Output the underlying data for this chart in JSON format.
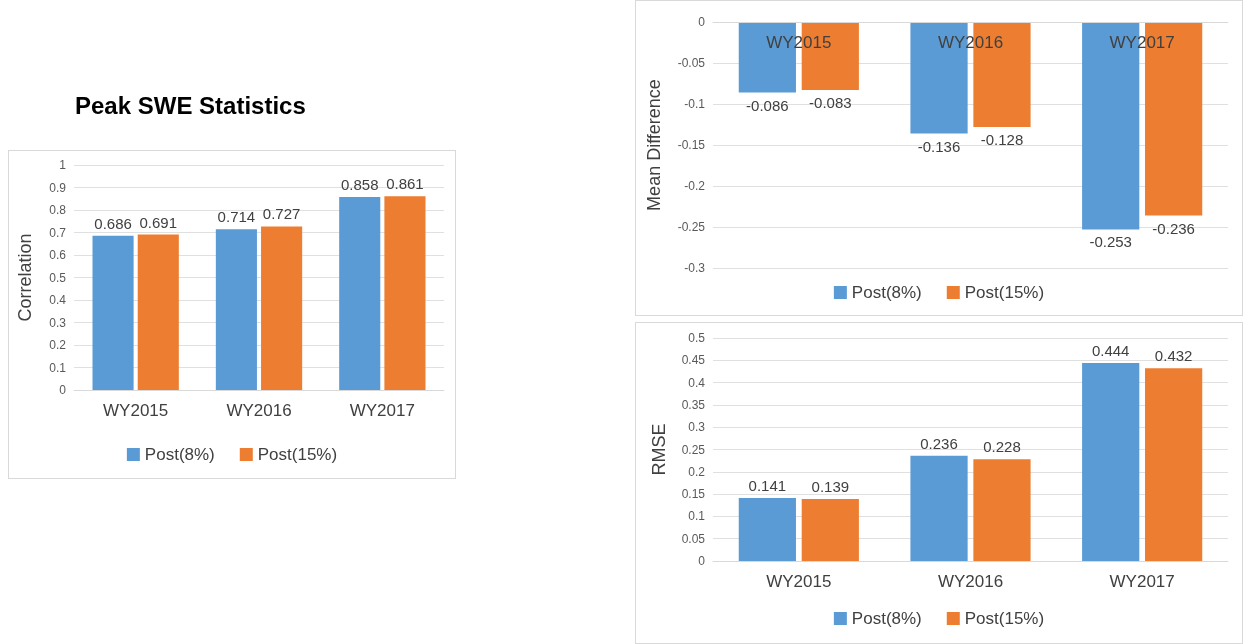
{
  "chart_data": [
    {
      "type": "bar",
      "title": "Peak SWE Statistics",
      "categories": [
        "WY2015",
        "WY2016",
        "WY2017"
      ],
      "ylabel": "Correlation",
      "ylim": [
        0,
        1
      ],
      "yticks": [
        0,
        0.1,
        0.2,
        0.3,
        0.4,
        0.5,
        0.6,
        0.7,
        0.8,
        0.9,
        1
      ],
      "grid": "y",
      "legend": "bottom",
      "data_labels": true,
      "series": [
        {
          "name": "Post(8%)",
          "color": "#5b9bd5",
          "values": [
            0.686,
            0.714,
            0.858
          ]
        },
        {
          "name": "Post(15%)",
          "color": "#ed7d31",
          "values": [
            0.691,
            0.727,
            0.861
          ]
        }
      ]
    },
    {
      "type": "bar",
      "categories": [
        "WY2015",
        "WY2016",
        "WY2017"
      ],
      "ylabel": "Mean Difference",
      "ylim": [
        -0.3,
        0
      ],
      "yticks": [
        -0.3,
        -0.25,
        -0.2,
        -0.15,
        -0.1,
        -0.05,
        0
      ],
      "grid": "y",
      "legend": "bottom",
      "data_labels": true,
      "series": [
        {
          "name": "Post(8%)",
          "color": "#5b9bd5",
          "values": [
            -0.086,
            -0.136,
            -0.253
          ]
        },
        {
          "name": "Post(15%)",
          "color": "#ed7d31",
          "values": [
            -0.083,
            -0.128,
            -0.236
          ]
        }
      ]
    },
    {
      "type": "bar",
      "categories": [
        "WY2015",
        "WY2016",
        "WY2017"
      ],
      "ylabel": "RMSE",
      "ylim": [
        0,
        0.5
      ],
      "yticks": [
        0,
        0.05,
        0.1,
        0.15,
        0.2,
        0.25,
        0.3,
        0.35,
        0.4,
        0.45,
        0.5
      ],
      "grid": "y",
      "legend": "bottom",
      "data_labels": true,
      "series": [
        {
          "name": "Post(8%)",
          "color": "#5b9bd5",
          "values": [
            0.141,
            0.236,
            0.444
          ]
        },
        {
          "name": "Post(15%)",
          "color": "#ed7d31",
          "values": [
            0.139,
            0.228,
            0.432
          ]
        }
      ]
    }
  ]
}
